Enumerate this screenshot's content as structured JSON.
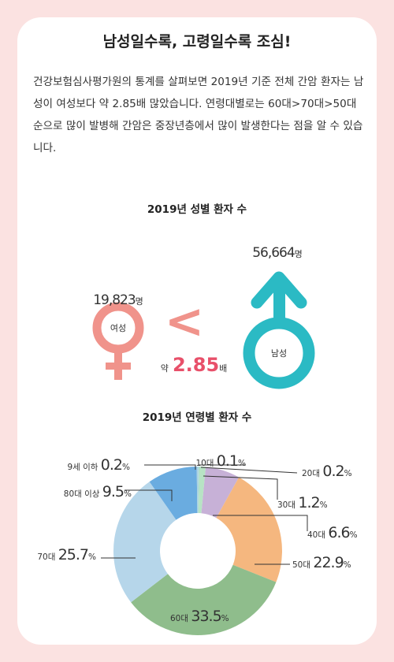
{
  "title": "남성일수록, 고령일수록 조심!",
  "intro": "건강보험심사평가원의 통계를 살펴보면 2019년 기준 전체 간암 환자는 남성이 여성보다 약 2.85배 많았습니다. 연령대별로는 60대>70대>50대 순으로 많이 발병해 간암은 중장년층에서 많이 발생한다는 점을 알 수 있습니다.",
  "gender_chart": {
    "title": "2019년 성별 환자 수",
    "female": {
      "label": "여성",
      "count": "19,823",
      "unit": "명",
      "color": "#f0938b"
    },
    "male": {
      "label": "남성",
      "count": "56,664",
      "unit": "명",
      "color": "#2bbac4"
    },
    "comparison_symbol": "<",
    "ratio_prefix": "약",
    "ratio_value": "2.85",
    "ratio_suffix": "배",
    "accent_color": "#e8506a",
    "lt_color": "#f0938b"
  },
  "chart_data": {
    "type": "pie",
    "title": "2019년 연령별 환자 수",
    "donut": true,
    "start": "top, clockwise",
    "slices": [
      {
        "label": "10대",
        "value": 0.1,
        "display": "0.1",
        "unit": "%",
        "color": "#bfe0ee"
      },
      {
        "label": "20대",
        "value": 0.2,
        "display": "0.2",
        "unit": "%",
        "color": "#9fd3cf"
      },
      {
        "label": "30대",
        "value": 1.2,
        "display": "1.2",
        "unit": "%",
        "color": "#b7e3c4"
      },
      {
        "label": "40대",
        "value": 6.6,
        "display": "6.6",
        "unit": "%",
        "color": "#c7b1d7"
      },
      {
        "label": "50대",
        "value": 22.9,
        "display": "22.9",
        "unit": "%",
        "color": "#f5b77f"
      },
      {
        "label": "60대",
        "value": 33.5,
        "display": "33.5",
        "unit": "%",
        "color": "#8fbd8c"
      },
      {
        "label": "70대",
        "value": 25.7,
        "display": "25.7",
        "unit": "%",
        "color": "#b6d6ea"
      },
      {
        "label": "80대 이상",
        "value": 9.5,
        "display": "9.5",
        "unit": "%",
        "color": "#6aace0"
      },
      {
        "label": "9세 이하",
        "value": 0.2,
        "display": "0.2",
        "unit": "%",
        "color": "#a8cfe0"
      }
    ]
  }
}
